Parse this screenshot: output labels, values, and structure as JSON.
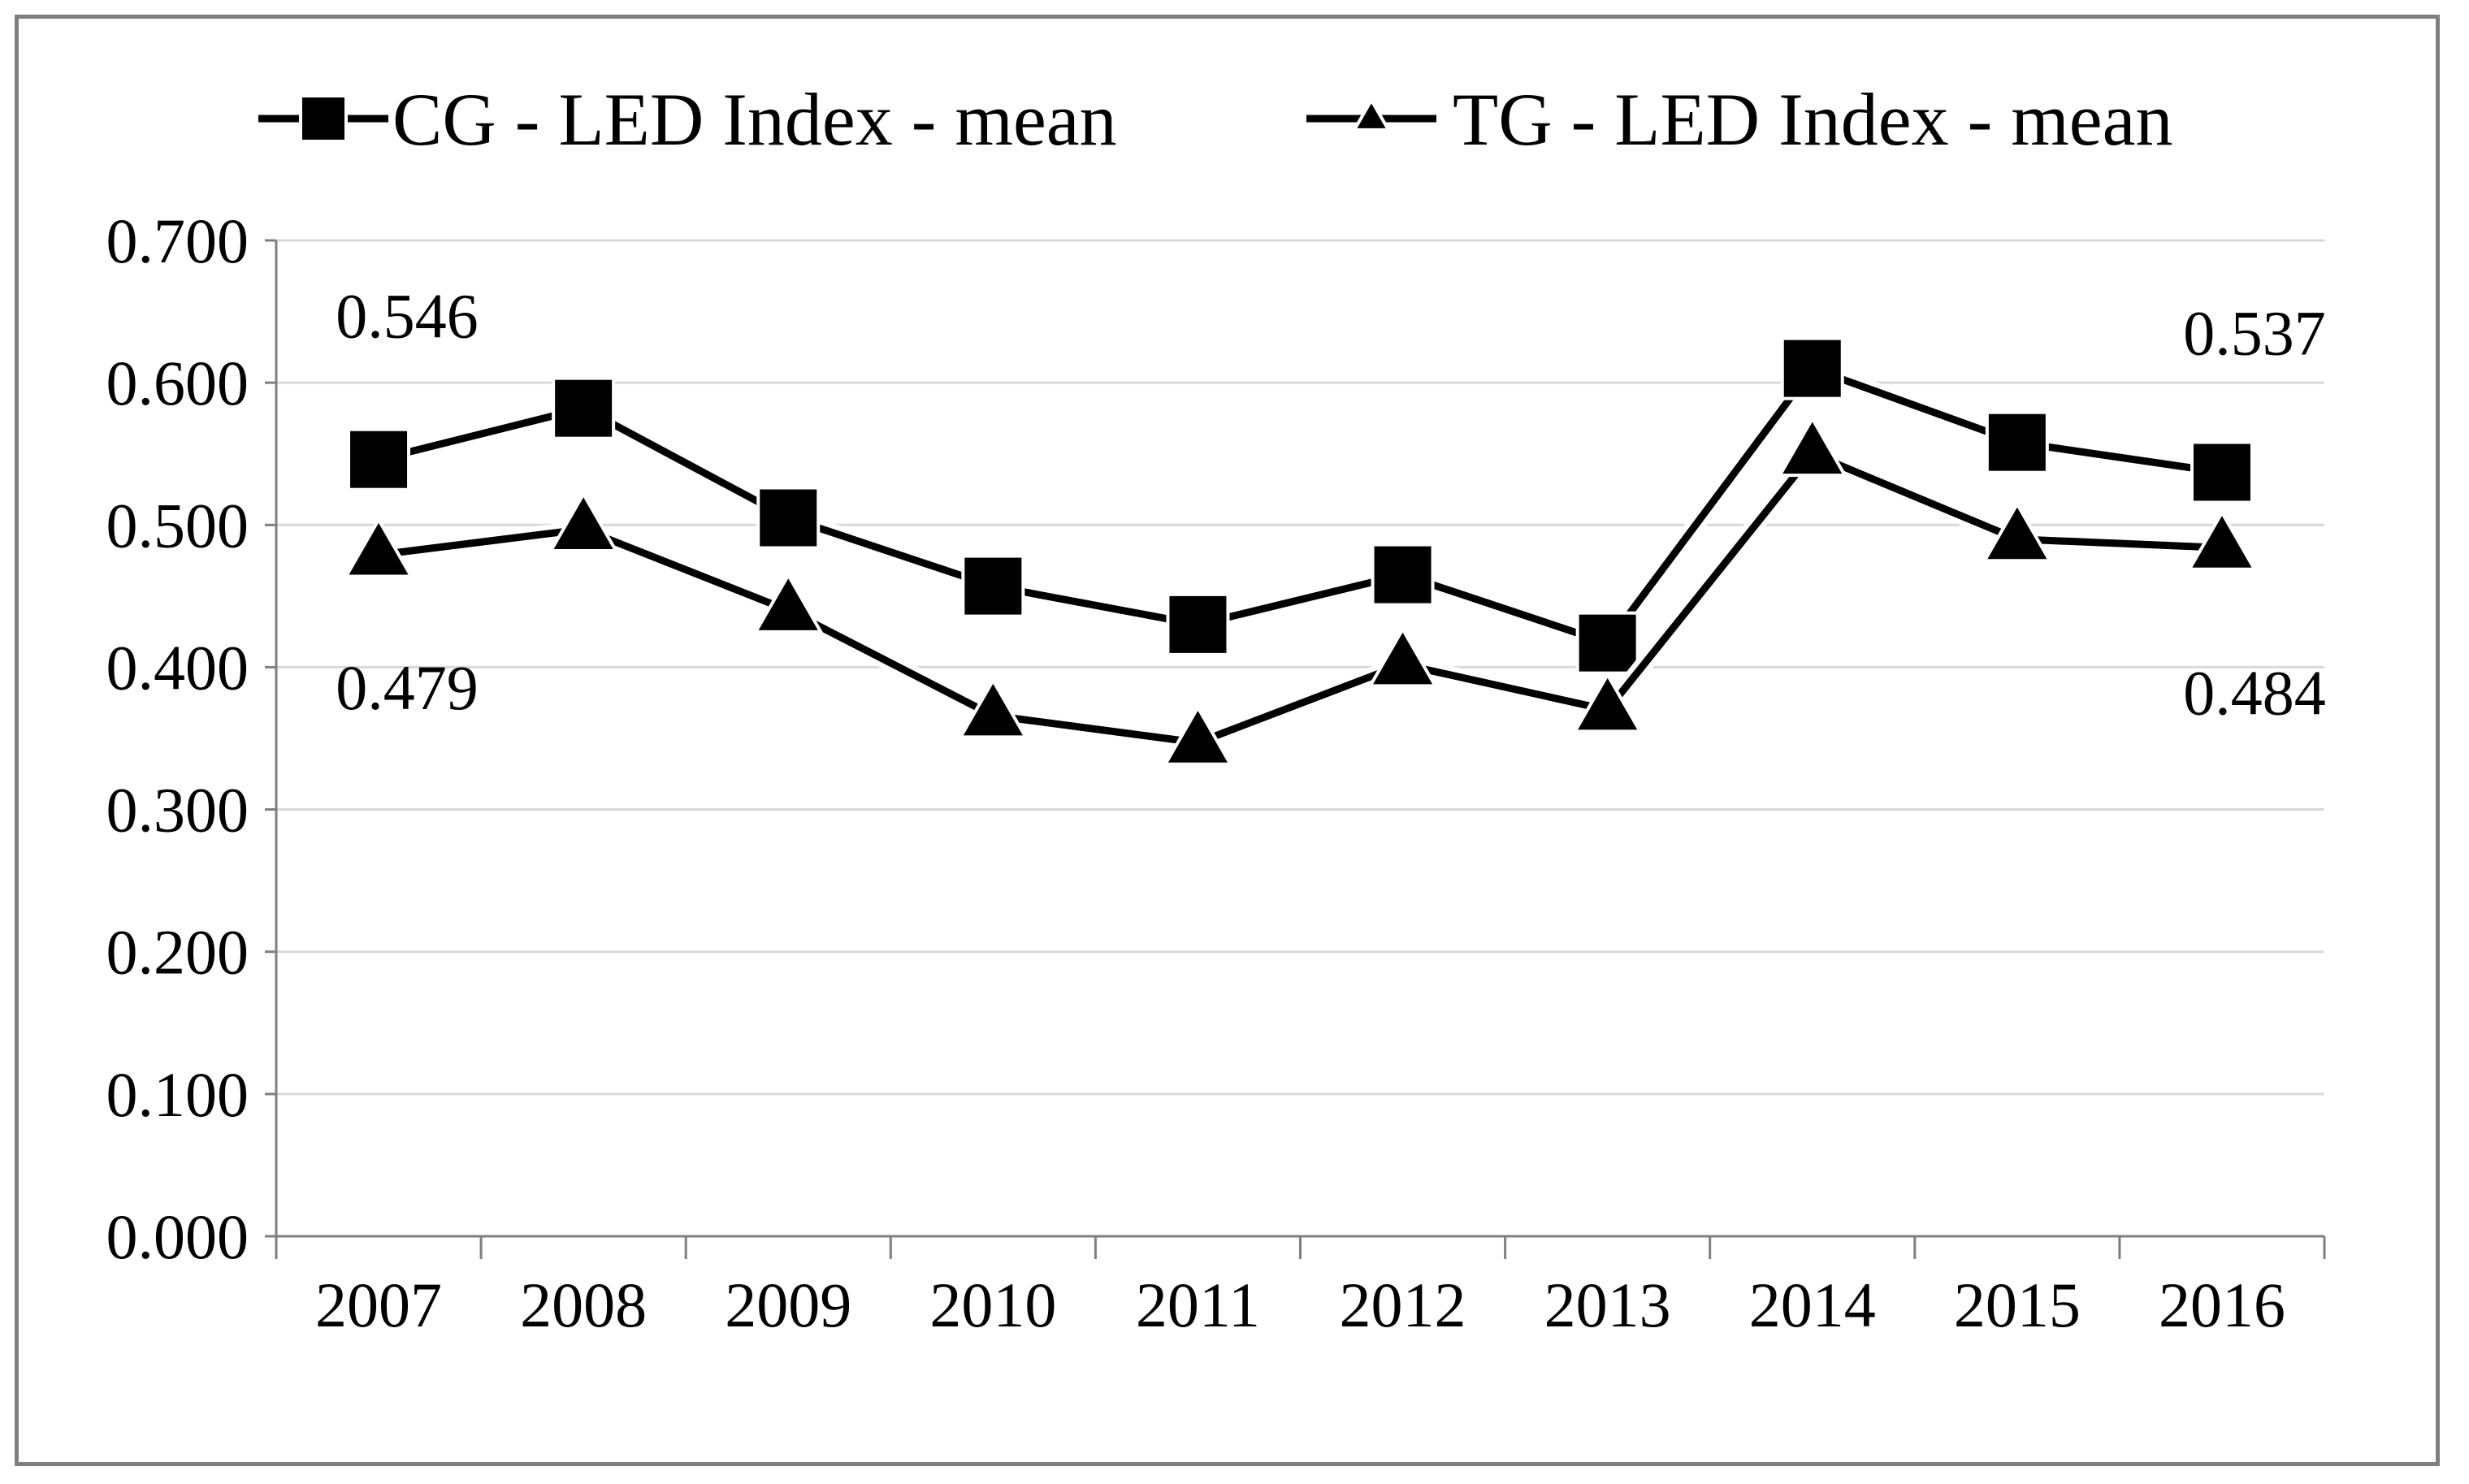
{
  "chart_data": {
    "type": "line",
    "title": "",
    "xlabel": "",
    "ylabel": "",
    "categories": [
      "2007",
      "2008",
      "2009",
      "2010",
      "2011",
      "2012",
      "2013",
      "2014",
      "2015",
      "2016"
    ],
    "ylim": [
      0,
      0.7
    ],
    "yticks": [
      "0.000",
      "0.100",
      "0.200",
      "0.300",
      "0.400",
      "0.500",
      "0.600",
      "0.700"
    ],
    "grid": true,
    "legend_position": "top",
    "series": [
      {
        "name": "CG - LED Index - mean",
        "marker": "square",
        "color": "#000000",
        "values": [
          0.546,
          0.582,
          0.505,
          0.457,
          0.43,
          0.465,
          0.417,
          0.61,
          0.558,
          0.537
        ]
      },
      {
        "name": "TG - LED Index - mean",
        "marker": "triangle",
        "color": "#000000",
        "values": [
          0.479,
          0.497,
          0.44,
          0.366,
          0.347,
          0.402,
          0.37,
          0.55,
          0.49,
          0.484
        ]
      }
    ],
    "annotations": [
      {
        "text": "0.546",
        "series": 0,
        "index": 0
      },
      {
        "text": "0.479",
        "series": 1,
        "index": 0
      },
      {
        "text": "0.537",
        "series": 0,
        "index": 9
      },
      {
        "text": "0.484",
        "series": 1,
        "index": 9
      }
    ]
  }
}
